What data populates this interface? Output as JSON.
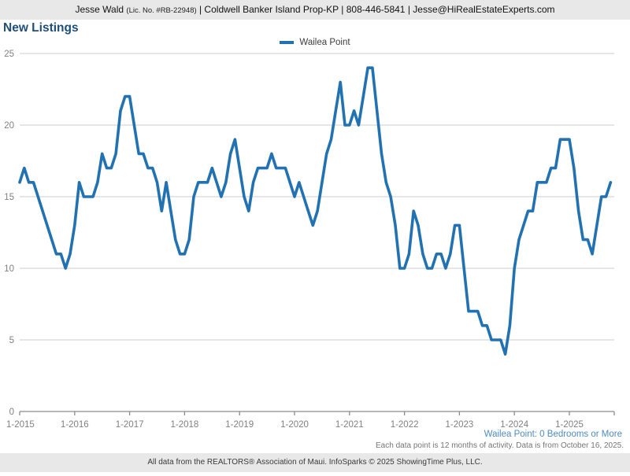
{
  "header": {
    "agent": "Jesse Wald",
    "license": "(Lic. No. #RB-22948)",
    "contact": "| Coldwell Banker Island Prop-KP | 808-446-5841 | Jesse@HiRealEstateExperts.com"
  },
  "title": "New Listings",
  "legend": {
    "label": "Wailea Point"
  },
  "footnotes": {
    "series_note": "Wailea Point: 0 Bedrooms or More",
    "data_note": "Each data point is 12 months of activity. Data is from October 16, 2025.",
    "attribution": "All data from the REALTORS® Association of Maui. InfoSparks © 2025 ShowingTime Plus, LLC."
  },
  "colors": {
    "line": "#2272b2",
    "title": "#1f4e79",
    "grid": "#cccccc",
    "axis": "#8c8c8c",
    "tick_label": "#808080",
    "series_note": "#4e8cc2",
    "header_bg": "#e8e8e8"
  },
  "chart_data": {
    "type": "line",
    "title": "New Listings",
    "series_name": "Wailea Point",
    "x_start": "1-2015",
    "x_end": "10-2025",
    "x_tick_labels": [
      "1-2015",
      "1-2016",
      "1-2017",
      "1-2018",
      "1-2019",
      "1-2020",
      "1-2021",
      "1-2022",
      "1-2023",
      "1-2024",
      "1-2025"
    ],
    "y_ticks": [
      0,
      5,
      10,
      15,
      20,
      25
    ],
    "ylim": [
      0,
      25
    ],
    "grid": "horizontal",
    "legend_position": "top-center",
    "values_by_year": [
      {
        "year": 2015,
        "values": [
          16,
          17,
          16,
          16,
          15,
          14,
          13,
          12,
          11,
          11,
          10,
          11
        ]
      },
      {
        "year": 2016,
        "values": [
          13,
          16,
          15,
          15,
          15,
          16,
          18,
          17,
          17,
          18,
          21,
          22
        ]
      },
      {
        "year": 2017,
        "values": [
          22,
          20,
          18,
          18,
          17,
          17,
          16,
          14,
          16,
          14,
          12,
          11
        ]
      },
      {
        "year": 2018,
        "values": [
          11,
          12,
          15,
          16,
          16,
          16,
          17,
          16,
          15,
          16,
          18,
          19
        ]
      },
      {
        "year": 2019,
        "values": [
          17,
          15,
          14,
          16,
          17,
          17,
          17,
          18,
          17,
          17,
          17,
          16
        ]
      },
      {
        "year": 2020,
        "values": [
          15,
          16,
          15,
          14,
          13,
          14,
          16,
          18,
          19,
          21,
          23,
          20
        ]
      },
      {
        "year": 2021,
        "values": [
          20,
          21,
          20,
          22,
          24,
          24,
          21,
          18,
          16,
          15,
          13,
          10
        ]
      },
      {
        "year": 2022,
        "values": [
          10,
          11,
          14,
          13,
          11,
          10,
          10,
          11,
          11,
          10,
          11,
          13
        ]
      },
      {
        "year": 2023,
        "values": [
          13,
          10,
          7,
          7,
          7,
          6,
          6,
          5,
          5,
          5,
          4,
          6
        ]
      },
      {
        "year": 2024,
        "values": [
          10,
          12,
          13,
          14,
          14,
          16,
          16,
          16,
          17,
          17,
          19,
          19
        ]
      },
      {
        "year": 2025,
        "values": [
          19,
          17,
          14,
          12,
          12,
          11,
          13,
          15,
          15,
          16
        ]
      }
    ]
  }
}
